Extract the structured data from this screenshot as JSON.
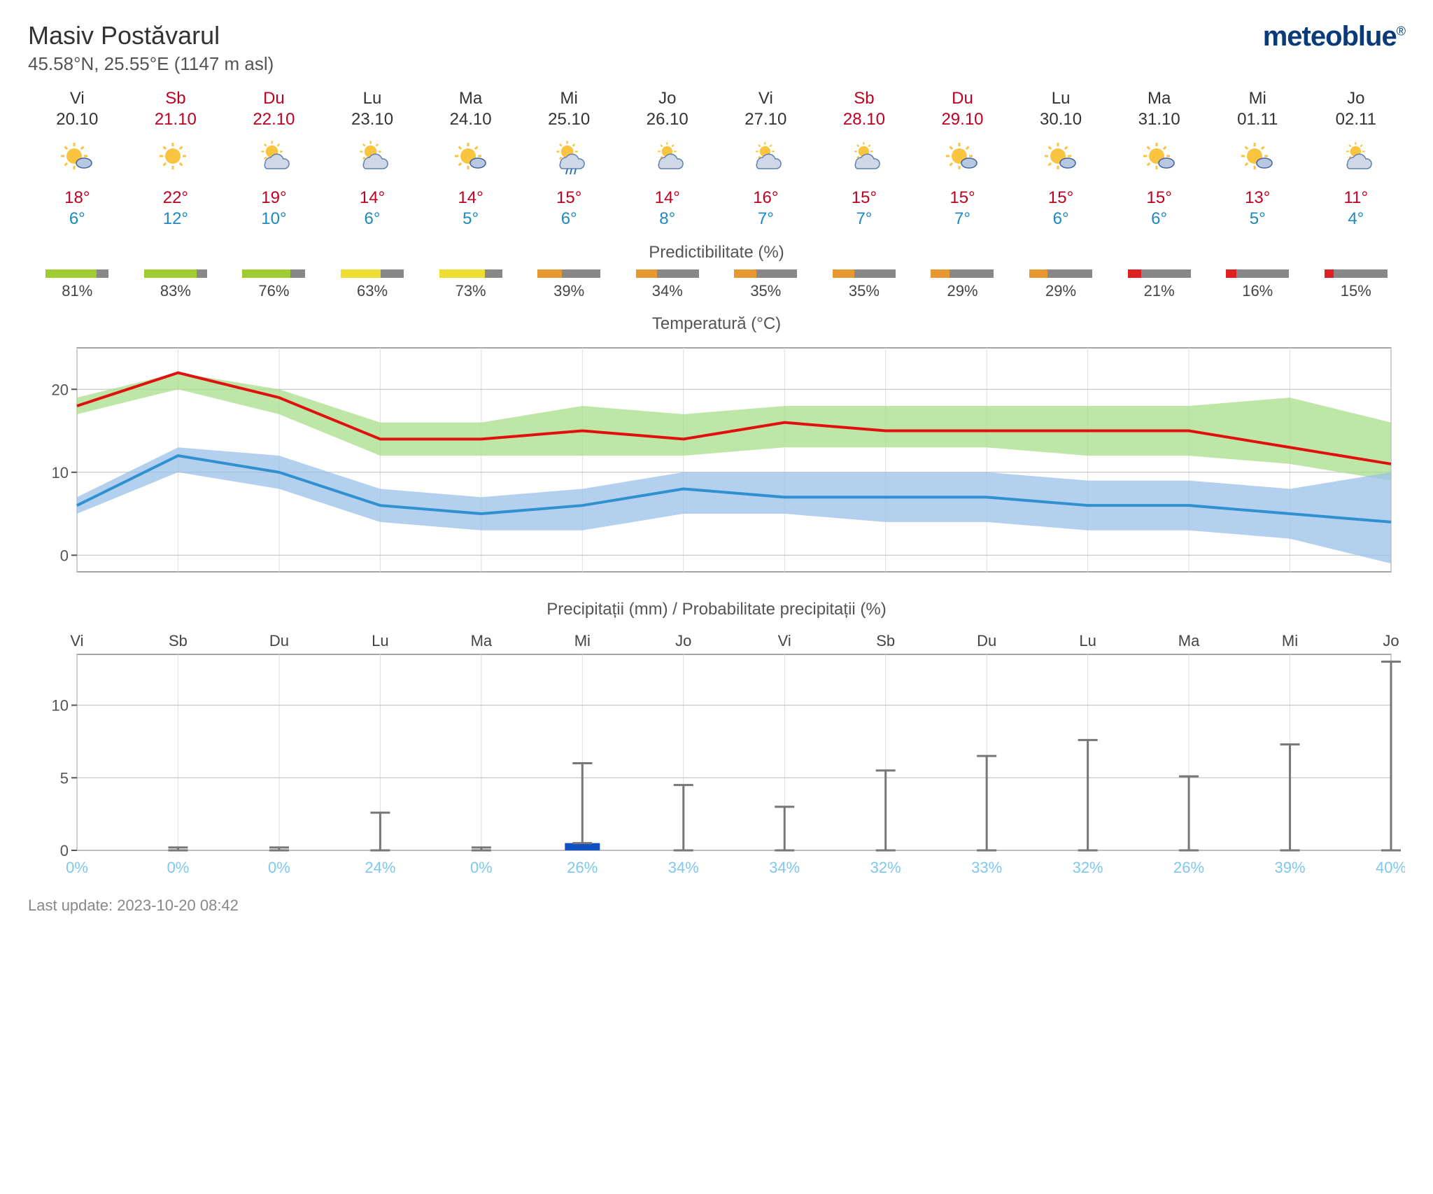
{
  "location": {
    "title": "Masiv Postăvarul",
    "subtitle": "45.58°N, 25.55°E (1147 m asl)"
  },
  "brand": "meteoblue",
  "predictability_label": "Predictibilitate (%)",
  "temp_chart_label": "Temperatură (°C)",
  "precip_chart_label": "Precipitații (mm) / Probabilitate precipitații (%)",
  "last_update": "Last update: 2023-10-20 08:42",
  "days": [
    {
      "name": "Vi",
      "date": "20.10",
      "weekend": false,
      "icon": "sun-cloud",
      "high": 18,
      "low": 6,
      "pred": 81,
      "pred_color": "#a0cc33",
      "precip_mm": 0,
      "precip_max": 0,
      "precip_pct": 0
    },
    {
      "name": "Sb",
      "date": "21.10",
      "weekend": true,
      "icon": "sun",
      "high": 22,
      "low": 12,
      "pred": 83,
      "pred_color": "#a0cc33",
      "precip_mm": 0,
      "precip_max": 0.2,
      "precip_pct": 0
    },
    {
      "name": "Du",
      "date": "22.10",
      "weekend": true,
      "icon": "sun-bigcloud",
      "high": 19,
      "low": 10,
      "pred": 76,
      "pred_color": "#a0cc33",
      "precip_mm": 0,
      "precip_max": 0.2,
      "precip_pct": 0
    },
    {
      "name": "Lu",
      "date": "23.10",
      "weekend": false,
      "icon": "sun-bigcloud",
      "high": 14,
      "low": 6,
      "pred": 63,
      "pred_color": "#eedd33",
      "precip_mm": 0,
      "precip_max": 2.6,
      "precip_pct": 24
    },
    {
      "name": "Ma",
      "date": "24.10",
      "weekend": false,
      "icon": "sun-cloud",
      "high": 14,
      "low": 5,
      "pred": 73,
      "pred_color": "#eedd33",
      "precip_mm": 0,
      "precip_max": 0.2,
      "precip_pct": 0
    },
    {
      "name": "Mi",
      "date": "25.10",
      "weekend": false,
      "icon": "sun-cloud-rain",
      "high": 15,
      "low": 6,
      "pred": 39,
      "pred_color": "#e89830",
      "precip_mm": 0.5,
      "precip_max": 6.0,
      "precip_pct": 26
    },
    {
      "name": "Jo",
      "date": "26.10",
      "weekend": false,
      "icon": "cloud-sun",
      "high": 14,
      "low": 8,
      "pred": 34,
      "pred_color": "#e89830",
      "precip_mm": 0,
      "precip_max": 4.5,
      "precip_pct": 34
    },
    {
      "name": "Vi",
      "date": "27.10",
      "weekend": false,
      "icon": "cloud-sun",
      "high": 16,
      "low": 7,
      "pred": 35,
      "pred_color": "#e89830",
      "precip_mm": 0,
      "precip_max": 3.0,
      "precip_pct": 34
    },
    {
      "name": "Sb",
      "date": "28.10",
      "weekend": true,
      "icon": "cloud-sun",
      "high": 15,
      "low": 7,
      "pred": 35,
      "pred_color": "#e89830",
      "precip_mm": 0,
      "precip_max": 5.5,
      "precip_pct": 32
    },
    {
      "name": "Du",
      "date": "29.10",
      "weekend": true,
      "icon": "sun-cloud2",
      "high": 15,
      "low": 7,
      "pred": 29,
      "pred_color": "#e89830",
      "precip_mm": 0,
      "precip_max": 6.5,
      "precip_pct": 33
    },
    {
      "name": "Lu",
      "date": "30.10",
      "weekend": false,
      "icon": "sun-cloud2",
      "high": 15,
      "low": 6,
      "pred": 29,
      "pred_color": "#e89830",
      "precip_mm": 0,
      "precip_max": 7.6,
      "precip_pct": 32
    },
    {
      "name": "Ma",
      "date": "31.10",
      "weekend": false,
      "icon": "sun-cloud2",
      "high": 15,
      "low": 6,
      "pred": 21,
      "pred_color": "#e02020",
      "precip_mm": 0,
      "precip_max": 5.1,
      "precip_pct": 26
    },
    {
      "name": "Mi",
      "date": "01.11",
      "weekend": false,
      "icon": "sun-cloud2",
      "high": 13,
      "low": 5,
      "pred": 16,
      "pred_color": "#e02020",
      "precip_mm": 0,
      "precip_max": 7.3,
      "precip_pct": 39
    },
    {
      "name": "Jo",
      "date": "02.11",
      "weekend": false,
      "icon": "cloud-sun",
      "high": 11,
      "low": 4,
      "pred": 15,
      "pred_color": "#e02020",
      "precip_mm": 0,
      "precip_max": 13.0,
      "precip_pct": 40
    }
  ],
  "temp_chart": {
    "ylim": [
      -2,
      25
    ],
    "yticks": [
      0,
      10,
      20
    ],
    "high_line_color": "#e01010",
    "high_band_color": "#a8dd88",
    "low_line_color": "#3090d0",
    "low_band_color": "#9ac0e8",
    "line_width": 4,
    "high_band_lo": [
      17,
      20,
      17,
      12,
      12,
      12,
      12,
      13,
      13,
      13,
      12,
      12,
      11,
      9
    ],
    "high_band_hi": [
      19,
      22,
      20,
      16,
      16,
      18,
      17,
      18,
      18,
      18,
      18,
      18,
      19,
      16
    ],
    "low_band_lo": [
      5,
      10,
      8,
      4,
      3,
      3,
      5,
      5,
      4,
      4,
      3,
      3,
      2,
      -1
    ],
    "low_band_hi": [
      7,
      13,
      12,
      8,
      7,
      8,
      10,
      10,
      10,
      10,
      9,
      9,
      8,
      10
    ]
  },
  "precip_chart": {
    "ylim": [
      0,
      13.5
    ],
    "yticks": [
      0,
      5,
      10
    ],
    "bar_color": "#1050c0",
    "whisker_color": "#777777",
    "pct_color": "#7ec8f0"
  },
  "colors": {
    "bg": "#ffffff",
    "text": "#333333",
    "grid": "#bbbbbb",
    "grid_minor": "#dddddd",
    "pred_rest": "#888888"
  }
}
